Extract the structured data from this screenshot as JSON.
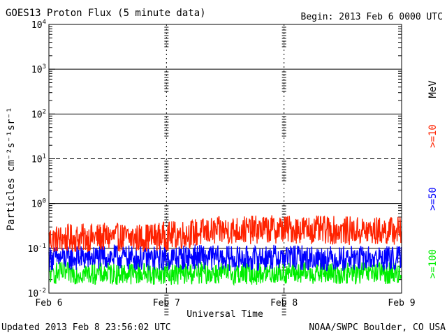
{
  "title": "GOES13 Proton Flux (5 minute data)",
  "begin_label": "Begin: 2013 Feb 6 0000 UTC",
  "updated_label": "Updated 2013 Feb  8 23:56:02 UTC",
  "credit_label": "NOAA/SWPC Boulder, CO USA",
  "chart_data": {
    "type": "line",
    "title": "GOES13 Proton Flux (5 minute data)",
    "xlabel": "Universal Time",
    "ylabel": "Particles cm⁻²s⁻¹sr⁻¹",
    "yscale": "log",
    "ylim": [
      0.01,
      10000
    ],
    "xlim": [
      "2013-02-06 00:00",
      "2013-02-09 00:00"
    ],
    "x_ticks": [
      "Feb 6",
      "Feb 7",
      "Feb 8",
      "Feb 9"
    ],
    "y_ticks": [
      {
        "base": "10",
        "exp": "4"
      },
      {
        "base": "10",
        "exp": "3"
      },
      {
        "base": "10",
        "exp": "2"
      },
      {
        "base": "10",
        "exp": "1"
      },
      {
        "base": "10",
        "exp": "0"
      },
      {
        "base": "10",
        "exp": "-1"
      },
      {
        "base": "10",
        "exp": "-2"
      }
    ],
    "energy_unit": "MeV",
    "grid": true,
    "legend_position": "right",
    "series": [
      {
        "name": ">=10",
        "color": "#ff2200",
        "x": [
          "2013-02-06 00:00",
          "2013-02-06 06:00",
          "2013-02-06 12:00",
          "2013-02-06 18:00",
          "2013-02-07 00:00",
          "2013-02-07 06:00",
          "2013-02-07 12:00",
          "2013-02-07 18:00",
          "2013-02-08 00:00",
          "2013-02-08 06:00",
          "2013-02-08 12:00",
          "2013-02-08 18:00",
          "2013-02-09 00:00"
        ],
        "values": [
          0.16,
          0.17,
          0.18,
          0.17,
          0.19,
          0.22,
          0.25,
          0.26,
          0.27,
          0.26,
          0.25,
          0.24,
          0.25
        ]
      },
      {
        "name": ">=50",
        "color": "#0000ff",
        "x": [
          "2013-02-06 00:00",
          "2013-02-06 06:00",
          "2013-02-06 12:00",
          "2013-02-06 18:00",
          "2013-02-07 00:00",
          "2013-02-07 06:00",
          "2013-02-07 12:00",
          "2013-02-07 18:00",
          "2013-02-08 00:00",
          "2013-02-08 06:00",
          "2013-02-08 12:00",
          "2013-02-08 18:00",
          "2013-02-09 00:00"
        ],
        "values": [
          0.06,
          0.06,
          0.065,
          0.06,
          0.06,
          0.065,
          0.06,
          0.06,
          0.065,
          0.06,
          0.06,
          0.06,
          0.06
        ]
      },
      {
        "name": ">=100",
        "color": "#00ee00",
        "x": [
          "2013-02-06 00:00",
          "2013-02-06 06:00",
          "2013-02-06 12:00",
          "2013-02-06 18:00",
          "2013-02-07 00:00",
          "2013-02-07 06:00",
          "2013-02-07 12:00",
          "2013-02-07 18:00",
          "2013-02-08 00:00",
          "2013-02-08 06:00",
          "2013-02-08 12:00",
          "2013-02-08 18:00",
          "2013-02-09 00:00"
        ],
        "values": [
          0.028,
          0.028,
          0.027,
          0.028,
          0.027,
          0.028,
          0.028,
          0.027,
          0.028,
          0.028,
          0.027,
          0.028,
          0.028
        ]
      }
    ]
  }
}
